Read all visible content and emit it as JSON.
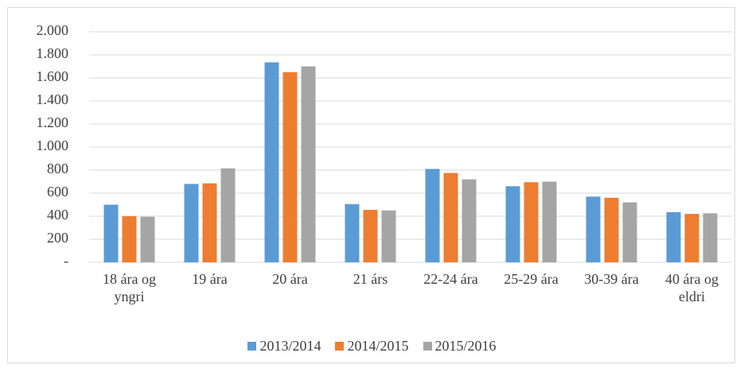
{
  "chart_data": {
    "type": "bar",
    "categories": [
      "18 ára og yngri",
      "19 ára",
      "20 ára",
      "21 árs",
      "22-24 ára",
      "25-29 ára",
      "30-39 ára",
      "40 ára og eldri"
    ],
    "series": [
      {
        "name": "2013/2014",
        "color": "#5b9bd5",
        "values": [
          500,
          680,
          1735,
          505,
          810,
          660,
          570,
          435
        ]
      },
      {
        "name": "2014/2015",
        "color": "#ed7d31",
        "values": [
          400,
          685,
          1650,
          455,
          775,
          695,
          560,
          420
        ]
      },
      {
        "name": "2015/2016",
        "color": "#a5a5a5",
        "values": [
          395,
          815,
          1700,
          450,
          720,
          700,
          520,
          425
        ]
      }
    ],
    "ylim": [
      0,
      2000
    ],
    "yticks": [
      {
        "value": 0,
        "label": "-"
      },
      200,
      400,
      600,
      800,
      {
        "value": 1000,
        "label": "1.000"
      },
      {
        "value": 1200,
        "label": "1.200"
      },
      {
        "value": 1400,
        "label": "1.400"
      },
      {
        "value": 1600,
        "label": "1.600"
      },
      {
        "value": 1800,
        "label": "1.800"
      },
      {
        "value": 2000,
        "label": "2.000"
      }
    ],
    "grid": true,
    "legend": "bottom"
  }
}
